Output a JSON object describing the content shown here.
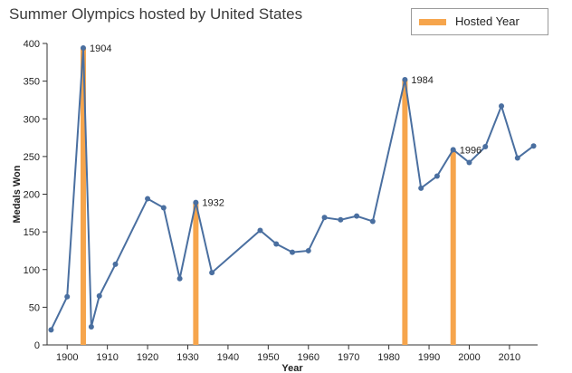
{
  "chart_data": {
    "type": "line",
    "title": "Summer Olympics hosted by United States",
    "xlabel": "Year",
    "ylabel": "Medals Won",
    "xlim": [
      1895,
      2017
    ],
    "ylim": [
      0,
      400
    ],
    "x_ticks": [
      1900,
      1910,
      1920,
      1930,
      1940,
      1950,
      1960,
      1970,
      1980,
      1990,
      2000,
      2010
    ],
    "y_ticks": [
      0,
      50,
      100,
      150,
      200,
      250,
      300,
      350,
      400
    ],
    "series": [
      {
        "name": "Medals Won",
        "color": "#4a6fa0",
        "points": [
          {
            "year": 1896,
            "value": 20
          },
          {
            "year": 1900,
            "value": 64
          },
          {
            "year": 1904,
            "value": 394
          },
          {
            "year": 1906,
            "value": 24
          },
          {
            "year": 1908,
            "value": 65
          },
          {
            "year": 1912,
            "value": 107
          },
          {
            "year": 1920,
            "value": 194
          },
          {
            "year": 1924,
            "value": 182
          },
          {
            "year": 1928,
            "value": 88
          },
          {
            "year": 1932,
            "value": 189
          },
          {
            "year": 1936,
            "value": 96
          },
          {
            "year": 1948,
            "value": 152
          },
          {
            "year": 1952,
            "value": 134
          },
          {
            "year": 1956,
            "value": 123
          },
          {
            "year": 1960,
            "value": 125
          },
          {
            "year": 1964,
            "value": 169
          },
          {
            "year": 1968,
            "value": 166
          },
          {
            "year": 1972,
            "value": 171
          },
          {
            "year": 1976,
            "value": 164
          },
          {
            "year": 1984,
            "value": 352
          },
          {
            "year": 1988,
            "value": 208
          },
          {
            "year": 1992,
            "value": 224
          },
          {
            "year": 1996,
            "value": 259
          },
          {
            "year": 2000,
            "value": 242
          },
          {
            "year": 2004,
            "value": 263
          },
          {
            "year": 2008,
            "value": 317
          },
          {
            "year": 2012,
            "value": 248
          },
          {
            "year": 2016,
            "value": 264
          }
        ]
      }
    ],
    "hosted": {
      "name": "Hosted Year",
      "color": "#f6a54c",
      "years": [
        {
          "year": 1904,
          "value": 394,
          "label": "1904"
        },
        {
          "year": 1932,
          "value": 189,
          "label": "1932"
        },
        {
          "year": 1984,
          "value": 352,
          "label": "1984"
        },
        {
          "year": 1996,
          "value": 259,
          "label": "1996"
        }
      ]
    },
    "legend": {
      "label": "Hosted Year",
      "position": "top-right"
    },
    "grid": false
  }
}
